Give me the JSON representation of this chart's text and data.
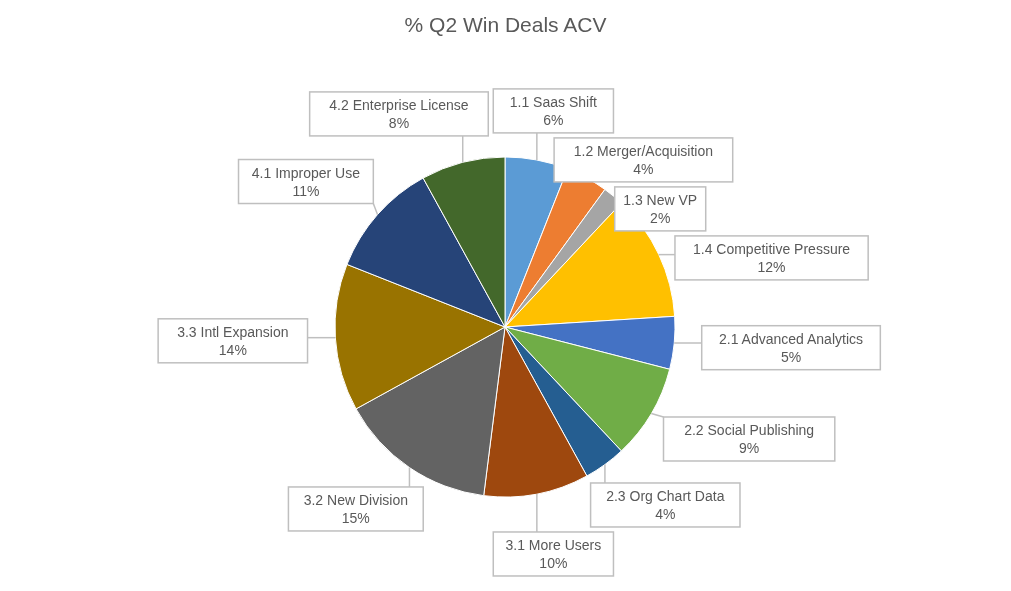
{
  "chart_data": {
    "type": "pie",
    "title": "% Q2 Win Deals ACV",
    "categories": [
      "1.1 Saas Shift",
      "1.2 Merger/Acquisition",
      "1.3 New VP",
      "1.4 Competitive Pressure",
      "2.1 Advanced Analytics",
      "2.2 Social Publishing",
      "2.3 Org Chart Data",
      "3.1 More Users",
      "3.2 New Division",
      "3.3 Intl Expansion",
      "4.1 Improper Use",
      "4.2 Enterprise License"
    ],
    "values": [
      6,
      4,
      2,
      12,
      5,
      9,
      4,
      10,
      15,
      14,
      11,
      8
    ],
    "value_labels": [
      "6%",
      "4%",
      "2%",
      "12%",
      "5%",
      "9%",
      "4%",
      "10%",
      "15%",
      "14%",
      "11%",
      "8%"
    ],
    "colors": [
      "#5b9bd5",
      "#ed7d31",
      "#a5a5a5",
      "#ffc000",
      "#4472c4",
      "#70ad47",
      "#255e91",
      "#9e480e",
      "#636363",
      "#997300",
      "#264478",
      "#43682b"
    ]
  }
}
